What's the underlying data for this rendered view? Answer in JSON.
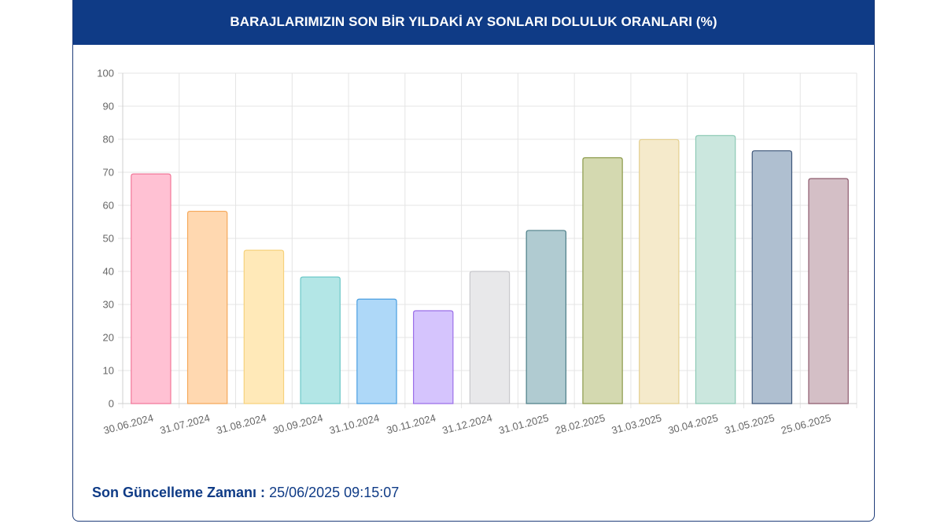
{
  "header": {
    "title": "BARAJLARIMIZIN SON BİR YILDAKİ AY SONLARI DOLULUK ORANLARI (%)"
  },
  "footer": {
    "label": "Son Güncelleme Zamanı :",
    "value": "25/06/2025 09:15:07"
  },
  "chart_data": {
    "type": "bar",
    "title": "BARAJLARIMIZIN SON BİR YILDAKİ AY SONLARI DOLULUK ORANLARI (%)",
    "xlabel": "",
    "ylabel": "",
    "ylim": [
      0,
      100
    ],
    "yticks": [
      0,
      10,
      20,
      30,
      40,
      50,
      60,
      70,
      80,
      90,
      100
    ],
    "grid": true,
    "legend": "none",
    "categories": [
      "30.06.2024",
      "31.07.2024",
      "31.08.2024",
      "30.09.2024",
      "31.10.2024",
      "30.11.2024",
      "31.12.2024",
      "31.01.2025",
      "28.02.2025",
      "31.03.2025",
      "30.04.2025",
      "31.05.2025",
      "25.06.2025"
    ],
    "values": [
      69.5,
      58.2,
      46.4,
      38.3,
      31.6,
      28.1,
      40.0,
      52.4,
      74.4,
      79.9,
      81.1,
      76.5,
      68.1
    ],
    "fill_colors": [
      "#ffc1d3",
      "#ffd8b0",
      "#ffe9b8",
      "#b3e6e6",
      "#aed8f8",
      "#d5c4fd",
      "#e8e8ea",
      "#b0cbd1",
      "#d4d9b0",
      "#f5eacb",
      "#cbe7de",
      "#afbfd0",
      "#d4bfc6"
    ],
    "stroke_colors": [
      "#f2789a",
      "#f5a85a",
      "#f6d27c",
      "#6cc8c8",
      "#4a9fe0",
      "#9b6ee8",
      "#c8c8cc",
      "#4d7f88",
      "#8b9a4a",
      "#e4cf8e",
      "#8cc9b5",
      "#3b5478",
      "#8e5a6d"
    ]
  }
}
